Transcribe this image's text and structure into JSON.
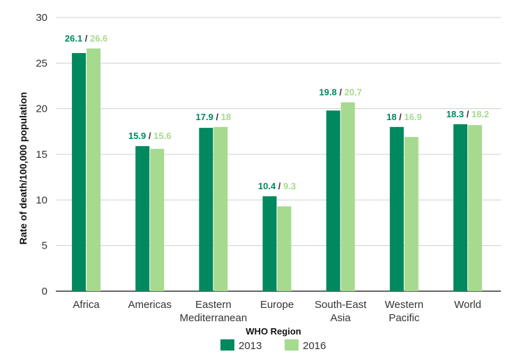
{
  "chart_data": {
    "type": "bar",
    "xlabel": "WHO Region",
    "ylabel": "Rate of death/100,000 population",
    "ylim": [
      0,
      30
    ],
    "yticks": [
      0,
      5,
      10,
      15,
      20,
      25,
      30
    ],
    "grid": true,
    "legend_position": "bottom",
    "categories": [
      [
        "Africa"
      ],
      [
        "Americas"
      ],
      [
        "Eastern",
        "Mediterranean"
      ],
      [
        "Europe"
      ],
      [
        "South-East",
        "Asia"
      ],
      [
        "Western",
        "Pacific"
      ],
      [
        "World"
      ]
    ],
    "series": [
      {
        "name": "2013",
        "color": "#00885f",
        "values": [
          26.1,
          15.9,
          17.9,
          10.4,
          19.8,
          18,
          18.3
        ],
        "labels": [
          "26.1",
          "15.9",
          "17.9",
          "10.4",
          "19.8",
          "18",
          "18.3"
        ]
      },
      {
        "name": "2016",
        "color": "#a6da8e",
        "values": [
          26.6,
          15.6,
          18,
          9.3,
          20.7,
          16.9,
          18.2
        ],
        "labels": [
          "26.6",
          "15.6",
          "18",
          "9.3",
          "20.7",
          "16.9",
          "18.2"
        ]
      }
    ],
    "label_separator": " / "
  }
}
